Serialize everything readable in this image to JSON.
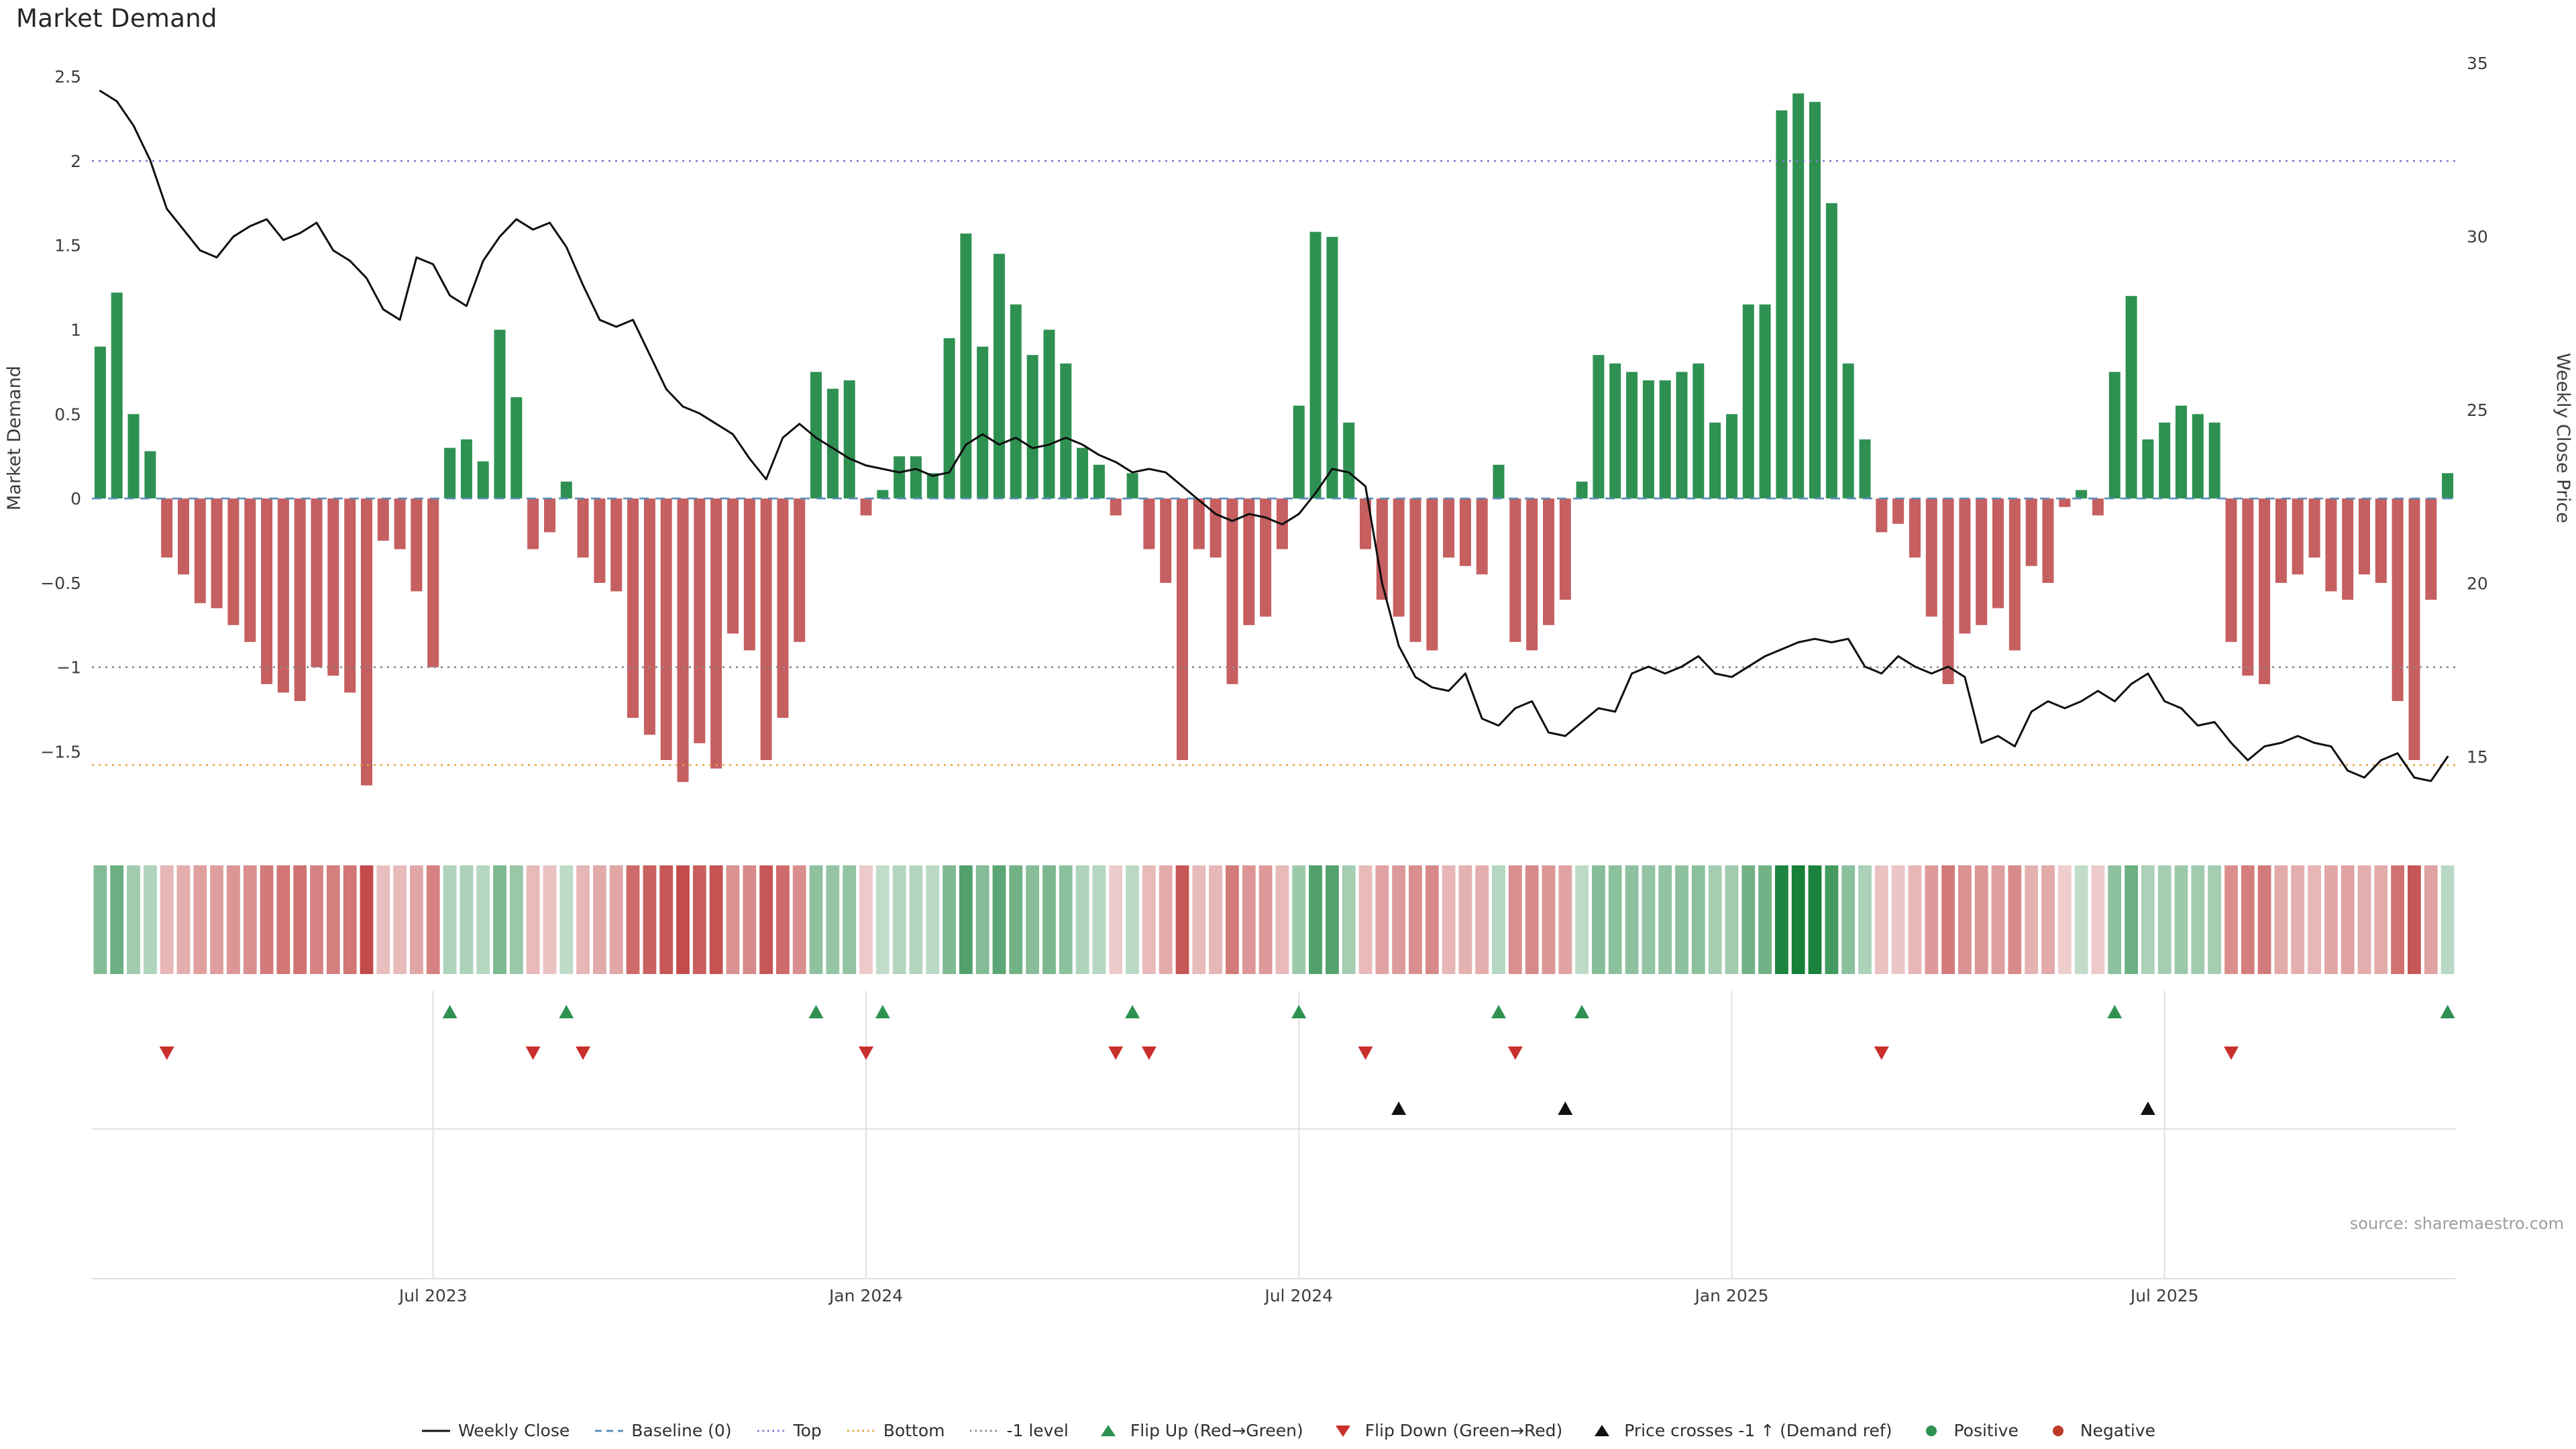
{
  "title": "Market Demand",
  "source_note": "source: sharemaestro.com",
  "chart_data": {
    "type": "bar+line",
    "title": "Market Demand",
    "x": {
      "start_date": "2023-02-06",
      "frequency": "weekly",
      "n_points": 142
    },
    "x_ticks": {
      "labels": [
        "Jul 2023",
        "Jan 2024",
        "Jul 2024",
        "Jan 2025",
        "Jul 2025"
      ],
      "indices": [
        20,
        46,
        72,
        98,
        124
      ]
    },
    "left_axis": {
      "label": "Market Demand",
      "range": [
        -1.88,
        2.6
      ],
      "tick_values": [
        2.5,
        2,
        1.5,
        1,
        0.5,
        0,
        -0.5,
        -1,
        -1.5
      ],
      "tick_labels": [
        "2.5",
        "2",
        "1.5",
        "1",
        "0.5",
        "0",
        "−0.5",
        "−1",
        "−1.5"
      ]
    },
    "right_axis": {
      "label": "Weekly Close Price",
      "range": [
        13.3,
        35.1
      ],
      "tick_values": [
        35,
        30,
        25,
        20,
        15
      ],
      "tick_labels": [
        "35",
        "30",
        "25",
        "20",
        "15"
      ]
    },
    "series": [
      {
        "name": "Market Demand",
        "type": "bar",
        "axis": "left",
        "positive_color": "#2e9152",
        "negative_color": "#c65f60",
        "values": [
          0.9,
          1.22,
          0.5,
          0.28,
          -0.35,
          -0.45,
          -0.62,
          -0.65,
          -0.75,
          -0.85,
          -1.1,
          -1.15,
          -1.2,
          -1.0,
          -1.05,
          -1.15,
          -1.7,
          -0.25,
          -0.3,
          -0.55,
          -1.0,
          0.3,
          0.35,
          0.22,
          1.0,
          0.6,
          -0.3,
          -0.2,
          0.1,
          -0.35,
          -0.5,
          -0.55,
          -1.3,
          -1.4,
          -1.55,
          -1.68,
          -1.45,
          -1.6,
          -0.8,
          -0.9,
          -1.55,
          -1.3,
          -0.85,
          0.75,
          0.65,
          0.7,
          -0.1,
          0.05,
          0.25,
          0.25,
          0.15,
          0.95,
          1.57,
          0.9,
          1.45,
          1.15,
          0.85,
          1.0,
          0.8,
          0.3,
          0.2,
          -0.1,
          0.15,
          -0.3,
          -0.5,
          -1.55,
          -0.3,
          -0.35,
          -1.1,
          -0.75,
          -0.7,
          -0.3,
          0.55,
          1.58,
          1.55,
          0.45,
          -0.3,
          -0.6,
          -0.7,
          -0.85,
          -0.9,
          -0.35,
          -0.4,
          -0.45,
          0.2,
          -0.85,
          -0.9,
          -0.75,
          -0.6,
          0.1,
          0.85,
          0.8,
          0.75,
          0.7,
          0.7,
          0.75,
          0.8,
          0.45,
          0.5,
          1.15,
          1.15,
          2.3,
          2.4,
          2.35,
          1.75,
          0.8,
          0.35,
          -0.2,
          -0.15,
          -0.35,
          -0.7,
          -1.1,
          -0.8,
          -0.75,
          -0.65,
          -0.9,
          -0.4,
          -0.5,
          -0.05,
          0.05,
          -0.1,
          0.75,
          1.2,
          0.35,
          0.45,
          0.55,
          0.5,
          0.45,
          -0.85,
          -1.05,
          -1.1,
          -0.5,
          -0.45,
          -0.35,
          -0.55,
          -0.6,
          -0.45,
          -0.5,
          -1.2,
          -1.55,
          -0.6,
          0.15
        ]
      },
      {
        "name": "Weekly Close",
        "type": "line",
        "axis": "right",
        "color": "#0f0f0f",
        "values": [
          34.2,
          33.9,
          33.2,
          32.2,
          30.8,
          30.2,
          29.6,
          29.4,
          30.0,
          30.3,
          30.5,
          29.9,
          30.1,
          30.4,
          29.6,
          29.3,
          28.8,
          27.9,
          27.6,
          29.4,
          29.2,
          28.3,
          28.0,
          29.3,
          30.0,
          30.5,
          30.2,
          30.4,
          29.7,
          28.6,
          27.6,
          27.4,
          27.6,
          26.6,
          25.6,
          25.1,
          24.9,
          24.6,
          24.3,
          23.6,
          23.0,
          24.2,
          24.6,
          24.2,
          23.9,
          23.6,
          23.4,
          23.3,
          23.2,
          23.3,
          23.1,
          23.2,
          24.0,
          24.3,
          24.0,
          24.2,
          23.9,
          24.0,
          24.2,
          24.0,
          23.7,
          23.5,
          23.2,
          23.3,
          23.2,
          22.8,
          22.4,
          22.0,
          21.8,
          22.0,
          21.9,
          21.7,
          22.0,
          22.6,
          23.3,
          23.2,
          22.8,
          20.0,
          18.2,
          17.3,
          17.0,
          16.9,
          17.4,
          16.1,
          15.9,
          16.4,
          16.6,
          15.7,
          15.6,
          16.0,
          16.4,
          16.3,
          17.4,
          17.6,
          17.4,
          17.6,
          17.9,
          17.4,
          17.3,
          17.6,
          17.9,
          18.1,
          18.3,
          18.4,
          18.3,
          18.4,
          17.6,
          17.4,
          17.9,
          17.6,
          17.4,
          17.6,
          17.3,
          15.4,
          15.6,
          15.3,
          16.3,
          16.6,
          16.4,
          16.6,
          16.9,
          16.6,
          17.1,
          17.4,
          16.6,
          16.4,
          15.9,
          16.0,
          15.4,
          14.9,
          15.3,
          15.4,
          15.6,
          15.4,
          15.3,
          14.6,
          14.4,
          14.9,
          15.1,
          14.4,
          14.3,
          15.0
        ]
      }
    ],
    "reference_lines": [
      {
        "name": "Baseline (0)",
        "value": 0,
        "style": "dashed",
        "color": "#5b8db8"
      },
      {
        "name": "Top",
        "value": 2.0,
        "style": "dotted",
        "color": "#7a7ad1"
      },
      {
        "name": "Bottom",
        "value": -1.58,
        "style": "dotted",
        "color": "#e6a23c"
      },
      {
        "name": "-1 level",
        "value": -1.0,
        "style": "dotted",
        "color": "#8a8a8a"
      }
    ],
    "markers": {
      "flip_up": {
        "label": "Flip Up (Red→Green)",
        "shape": "triangle-up",
        "color": "#2e9152",
        "indices": [
          21,
          28,
          43,
          47,
          62,
          72,
          84,
          89,
          121,
          141
        ]
      },
      "flip_down": {
        "label": "Flip Down (Green→Red)",
        "shape": "triangle-down",
        "color": "#c9302c",
        "indices": [
          4,
          26,
          29,
          46,
          61,
          63,
          76,
          85,
          107,
          128
        ]
      },
      "price_cross": {
        "label": "Price crosses -1 ↑ (Demand ref)",
        "shape": "triangle-up",
        "color": "#111111",
        "indices": [
          78,
          88,
          123
        ]
      }
    },
    "heatmap": {
      "source": "Market Demand values",
      "positive_base_color": "#168039",
      "negative_base_color": "#c34a4a"
    }
  },
  "legend": {
    "items": [
      {
        "label": "Weekly Close",
        "glyph": "line",
        "style": "solid",
        "color": "#111111"
      },
      {
        "label": "Baseline (0)",
        "glyph": "line",
        "style": "dashed",
        "color": "#5b8db8"
      },
      {
        "label": "Top",
        "glyph": "line",
        "style": "dotted",
        "color": "#7a7ad1"
      },
      {
        "label": "Bottom",
        "glyph": "line",
        "style": "dotted",
        "color": "#e6a23c"
      },
      {
        "label": "-1 level",
        "glyph": "line",
        "style": "dotted",
        "color": "#8a8a8a"
      },
      {
        "label": "Flip Up (Red→Green)",
        "glyph": "triangle-up",
        "color": "#2e9152"
      },
      {
        "label": "Flip Down (Green→Red)",
        "glyph": "triangle-down",
        "color": "#c9302c"
      },
      {
        "label": "Price crosses -1 ↑ (Demand ref)",
        "glyph": "triangle-up",
        "color": "#111111"
      },
      {
        "label": "Positive",
        "glyph": "dot",
        "color": "#2e9152"
      },
      {
        "label": "Negative",
        "glyph": "dot",
        "color": "#c0392b"
      }
    ]
  }
}
